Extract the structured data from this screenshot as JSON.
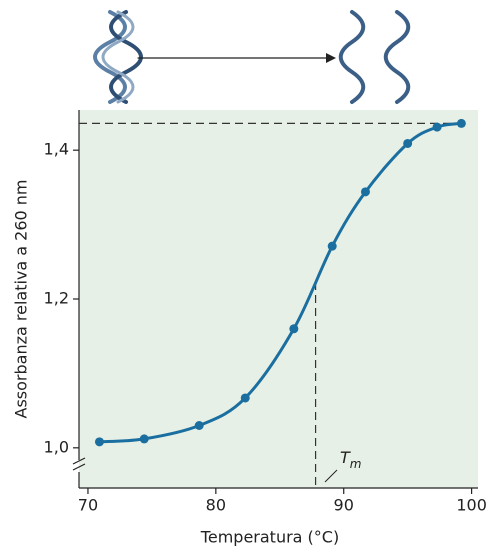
{
  "chart_data": {
    "type": "line",
    "x_label": "Temperatura (°C)",
    "y_label": "Assorbanza relativa a 260 nm",
    "x": [
      70.9,
      74.4,
      78.7,
      82.3,
      86.1,
      89.1,
      91.7,
      95.0,
      97.3,
      99.2
    ],
    "series": [
      {
        "color": "#1a6fa0",
        "values": [
          1.008,
          1.012,
          1.03,
          1.067,
          1.16,
          1.271,
          1.344,
          1.409,
          1.431,
          1.436
        ]
      }
    ],
    "xlim": [
      69.3,
      100.5
    ],
    "ylim": [
      0.946,
      1.454
    ],
    "xticks": [
      70,
      80,
      90,
      100
    ],
    "yticks": [
      {
        "value": 1.0,
        "label": "1,0"
      },
      {
        "value": 1.2,
        "label": "1,2"
      },
      {
        "value": 1.4,
        "label": "1,4"
      }
    ],
    "tm": 87.8,
    "tm_label": {
      "main": "T",
      "subscript": "m"
    },
    "background": "#e7f0e6"
  }
}
